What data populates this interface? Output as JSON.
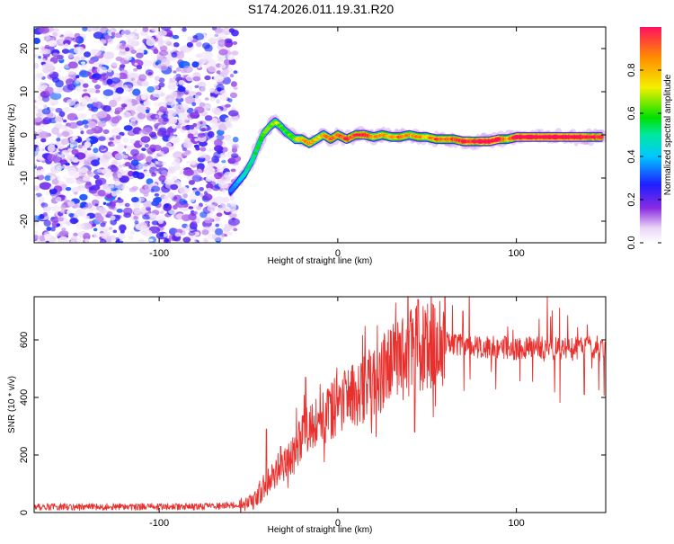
{
  "title": "S174.2026.011.19.31.R20",
  "chart_data": [
    {
      "type": "heatmap",
      "name": "spectrogram",
      "xlabel": "Height of straight line (km)",
      "ylabel": "Frequency (Hz)",
      "xlim": [
        -170,
        150
      ],
      "ylim": [
        -25,
        25
      ],
      "xticks": [
        -100,
        0,
        100
      ],
      "yticks": [
        -20,
        -10,
        0,
        10,
        20
      ],
      "noise_region_x": [
        -170,
        -57
      ],
      "ridge": {
        "x": [
          -60,
          -56,
          -52,
          -48,
          -45,
          -42,
          -38,
          -35,
          -32,
          -30,
          -27,
          -24,
          -20,
          -16,
          -12,
          -8,
          -4,
          0,
          5,
          10,
          15,
          20,
          25,
          30,
          35,
          40,
          45,
          50,
          55,
          60,
          65,
          70,
          75,
          80,
          85,
          90,
          95,
          100,
          110,
          120,
          130,
          140,
          148
        ],
        "freq": [
          -13,
          -11,
          -9,
          -6,
          -3,
          0,
          2,
          3,
          2,
          1,
          0,
          -1,
          -1,
          -2,
          -1,
          0,
          -1,
          0,
          -1,
          0,
          0,
          -0.5,
          0,
          -0.5,
          -0.5,
          0,
          -0.5,
          -0.5,
          -1,
          -1,
          -1,
          -1.5,
          -1.5,
          -1.5,
          -1.5,
          -1,
          -1,
          -0.5,
          -0.5,
          -0.5,
          -0.5,
          -0.5,
          -0.5
        ],
        "amplitude": [
          0.3,
          0.35,
          0.4,
          0.45,
          0.5,
          0.55,
          0.55,
          0.6,
          0.55,
          0.5,
          0.55,
          0.6,
          0.7,
          0.75,
          0.65,
          0.7,
          0.8,
          0.75,
          0.85,
          0.8,
          0.9,
          0.7,
          0.75,
          0.7,
          0.8,
          0.7,
          0.75,
          0.7,
          0.8,
          0.75,
          0.8,
          0.9,
          0.85,
          0.95,
          0.9,
          0.95,
          0.7,
          0.95,
          0.95,
          0.95,
          0.95,
          0.9,
          0.85
        ]
      },
      "colorbar": {
        "label": "Normalized spectral amplitude",
        "range": [
          0,
          1
        ],
        "ticks": [
          0.0,
          0.2,
          0.4,
          0.6,
          0.8
        ],
        "tick_labels": [
          "0.0",
          "0.2",
          "0.4",
          "0.6",
          "0.8"
        ]
      }
    },
    {
      "type": "line",
      "name": "snr",
      "xlabel": "Height of straight line (km)",
      "ylabel": "SNR (10 * v/v)",
      "xlim": [
        -170,
        150
      ],
      "ylim": [
        0,
        750
      ],
      "xticks": [
        -100,
        0,
        100
      ],
      "yticks": [
        0,
        200,
        400,
        600
      ],
      "color": "#e8312e",
      "trend": {
        "x": [
          -170,
          -120,
          -80,
          -60,
          -50,
          -45,
          -40,
          -35,
          -30,
          -25,
          -20,
          -15,
          -10,
          -5,
          0,
          5,
          10,
          15,
          20,
          25,
          30,
          35,
          40,
          45,
          50,
          55,
          60,
          70,
          80,
          90,
          100,
          110,
          120,
          130,
          140,
          150
        ],
        "y": [
          20,
          20,
          20,
          25,
          30,
          60,
          100,
          140,
          170,
          200,
          260,
          300,
          330,
          350,
          370,
          390,
          410,
          430,
          460,
          490,
          510,
          540,
          560,
          570,
          580,
          585,
          590,
          580,
          575,
          575,
          570,
          575,
          570,
          570,
          575,
          575
        ]
      },
      "peaks": [
        {
          "x": -40,
          "y": 290
        },
        {
          "x": -32,
          "y": 230
        },
        {
          "x": -18,
          "y": 470
        },
        {
          "x": 0,
          "y": 400
        },
        {
          "x": 17,
          "y": 530
        },
        {
          "x": 40,
          "y": 630
        },
        {
          "x": 45,
          "y": 740
        },
        {
          "x": 60,
          "y": 750
        },
        {
          "x": 70,
          "y": 700
        }
      ],
      "dips": [
        {
          "x": 43,
          "y": 280
        },
        {
          "x": 138,
          "y": 410
        }
      ],
      "noise_amplitude": 12
    }
  ]
}
